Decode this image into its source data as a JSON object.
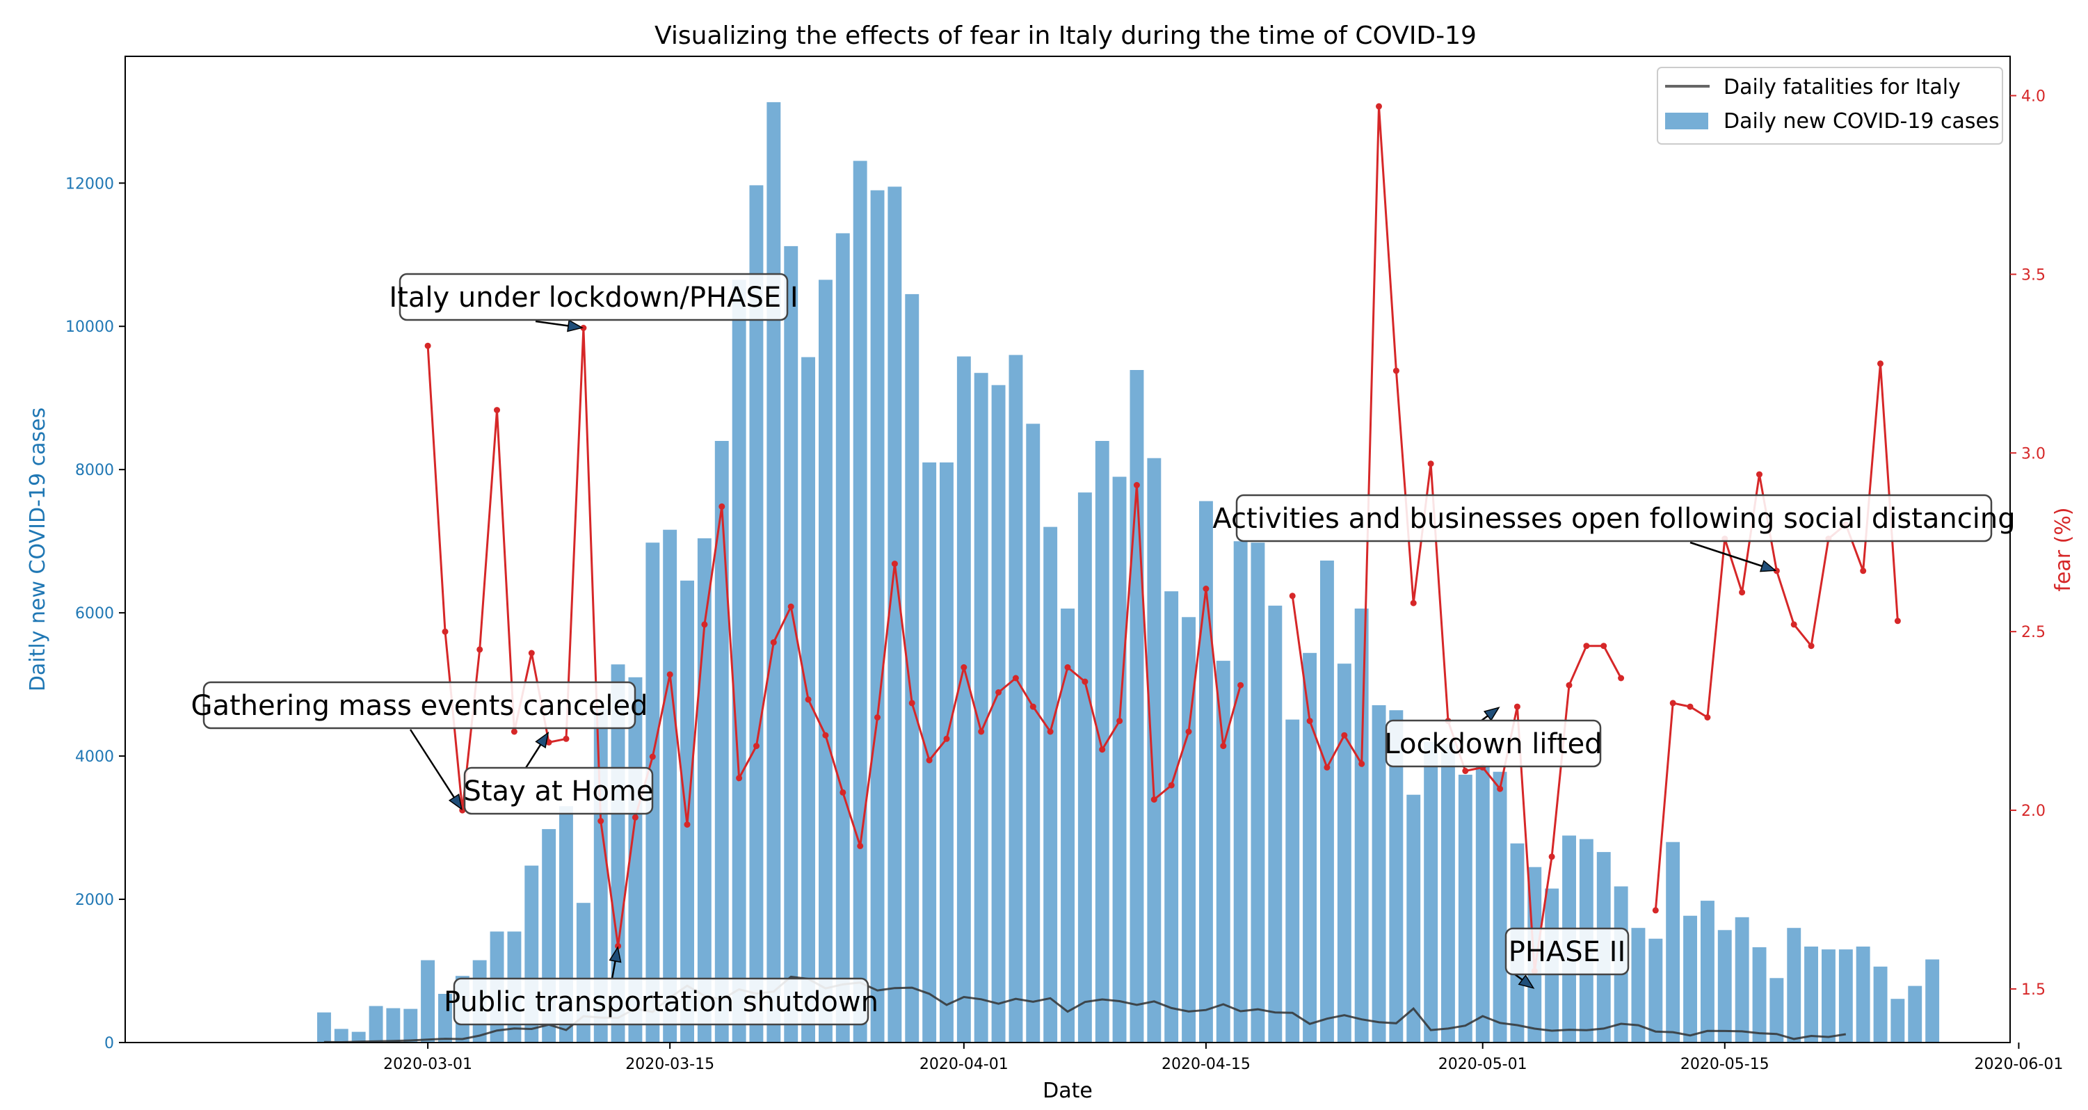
{
  "chart_data": {
    "type": "bar+line",
    "title": "Visualizing the effects of fear in Italy during the time of COVID-19",
    "xlabel": "Date",
    "ylabel_left": "Daitly new COVID-19 cases",
    "ylabel_right": "fear (%)",
    "colors": {
      "bars": "#76aed6",
      "fatalities": "#333333",
      "fear": "#d62728",
      "left_axis": "#1f77b4",
      "right_axis": "#d62728"
    },
    "x_start_date": "2020-02-24",
    "xlim_days": [
      -11.5,
      97.5
    ],
    "x_ticks": [
      {
        "day": 6,
        "label": "2020-03-01"
      },
      {
        "day": 20,
        "label": "2020-03-15"
      },
      {
        "day": 37,
        "label": "2020-04-01"
      },
      {
        "day": 51,
        "label": "2020-04-15"
      },
      {
        "day": 67,
        "label": "2020-05-01"
      },
      {
        "day": 81,
        "label": "2020-05-15"
      },
      {
        "day": 98,
        "label": "2020-06-01"
      }
    ],
    "ylim_left": [
      0,
      13770
    ],
    "y_ticks_left": [
      0,
      2000,
      4000,
      6000,
      8000,
      10000,
      12000
    ],
    "ylim_right": [
      1.35,
      4.11
    ],
    "y_ticks_right": [
      1.5,
      2.0,
      2.5,
      3.0,
      3.5,
      4.0
    ],
    "series": [
      {
        "name": "Daily new COVID-19 cases",
        "kind": "bar",
        "start_day": 0,
        "values": [
          420,
          190,
          150,
          510,
          480,
          470,
          1150,
          680,
          930,
          1150,
          1550,
          1550,
          2470,
          2980,
          3300,
          1950,
          4660,
          5280,
          5100,
          6980,
          7160,
          6450,
          7040,
          8400,
          10650,
          11970,
          13130,
          11120,
          9570,
          10650,
          11300,
          12310,
          11900,
          11950,
          10450,
          8100,
          8100,
          9580,
          9350,
          9180,
          9600,
          8640,
          7200,
          6060,
          7680,
          8400,
          7900,
          9390,
          8160,
          6300,
          5940,
          7560,
          5330,
          7000,
          6980,
          6100,
          4510,
          5440,
          6730,
          5290,
          6060,
          4710,
          4640,
          3460,
          4200,
          4170,
          3740,
          3850,
          3780,
          2780,
          2450,
          2150,
          2890,
          2840,
          2660,
          2180,
          1600,
          1450,
          2800,
          1770,
          1980,
          1570,
          1750,
          1330,
          900,
          1600,
          1340,
          1300,
          1300,
          1340,
          1060,
          610,
          790,
          1160
        ]
      },
      {
        "name": "Daily fatalities for Italy",
        "kind": "line",
        "start_day": 0,
        "values": [
          7,
          5,
          12,
          17,
          21,
          29,
          41,
          52,
          49,
          97,
          168,
          196,
          189,
          250,
          175,
          368,
          349,
          345,
          475,
          427,
          627,
          793,
          651,
          601,
          743,
          683,
          712,
          919,
          889,
          756,
          812,
          837,
          727,
          760,
          766,
          681,
          525,
          636,
          604,
          542,
          610,
          570,
          619,
          431,
          566,
          602,
          578,
          525,
          575,
          482,
          433,
          454,
          534,
          437,
          464,
          420,
          415,
          260,
          333,
          382,
          323,
          285,
          269,
          474,
          174,
          195,
          236,
          369,
          274,
          243,
          194,
          165,
          179,
          172,
          195,
          262,
          242,
          153,
          145,
          99,
          162,
          161,
          156,
          130,
          119,
          50,
          92,
          78,
          117
        ]
      },
      {
        "name": "fear",
        "kind": "line_markers",
        "segments": [
          {
            "start_day": 6,
            "values": [
              3.3,
              2.5,
              2.0,
              2.45,
              3.12,
              2.22,
              2.44,
              2.19,
              2.2,
              3.35,
              1.97,
              1.62,
              1.98,
              2.15,
              2.38,
              1.96,
              2.52,
              2.85,
              2.09,
              2.18,
              2.47,
              2.57,
              2.31,
              2.21,
              2.05,
              1.9,
              2.26,
              2.69,
              2.3,
              2.14,
              2.2,
              2.4,
              2.22,
              2.33,
              2.37,
              2.29,
              2.22,
              2.4,
              2.36,
              2.17,
              2.25,
              2.91,
              2.03,
              2.07,
              2.22,
              2.62,
              2.18,
              2.35
            ]
          },
          {
            "start_day": 56,
            "values": [
              2.6,
              2.25,
              2.12,
              2.21,
              2.13,
              3.97,
              3.23,
              2.58,
              2.97,
              2.25,
              2.11,
              2.12,
              2.06,
              2.29,
              1.55,
              1.87,
              2.35,
              2.46,
              2.46,
              2.37
            ]
          },
          {
            "start_day": 77,
            "values": [
              1.72,
              2.3,
              2.29,
              2.26,
              2.76,
              2.61,
              2.94,
              2.67,
              2.52,
              2.46,
              2.76,
              2.8,
              2.67,
              3.25,
              2.53
            ]
          }
        ]
      }
    ],
    "legend": {
      "placement": "top-right",
      "entries": [
        {
          "label": "Daily fatalities for Italy",
          "kind": "line"
        },
        {
          "label": "Daily new COVID-19 cases",
          "kind": "bar"
        }
      ]
    },
    "annotations": [
      {
        "text": "Italy under lockdown/PHASE I",
        "target_day": 15,
        "target_fear": 3.35
      },
      {
        "text": "Gathering mass events canceled",
        "target_day": 8,
        "target_fear": 2.0
      },
      {
        "text": "Stay at Home",
        "target_day": 13,
        "target_fear": 2.22
      },
      {
        "text": "Public transportation shutdown",
        "target_day": 17,
        "target_fear": 1.62
      },
      {
        "text": "Activities and businesses open following social distancing",
        "target_day": 84,
        "target_fear": 2.67
      },
      {
        "text": "Lockdown lifted",
        "target_day": 68,
        "target_fear": 2.29
      },
      {
        "text": "PHASE II",
        "target_day": 70,
        "target_fear": 1.5
      }
    ]
  }
}
